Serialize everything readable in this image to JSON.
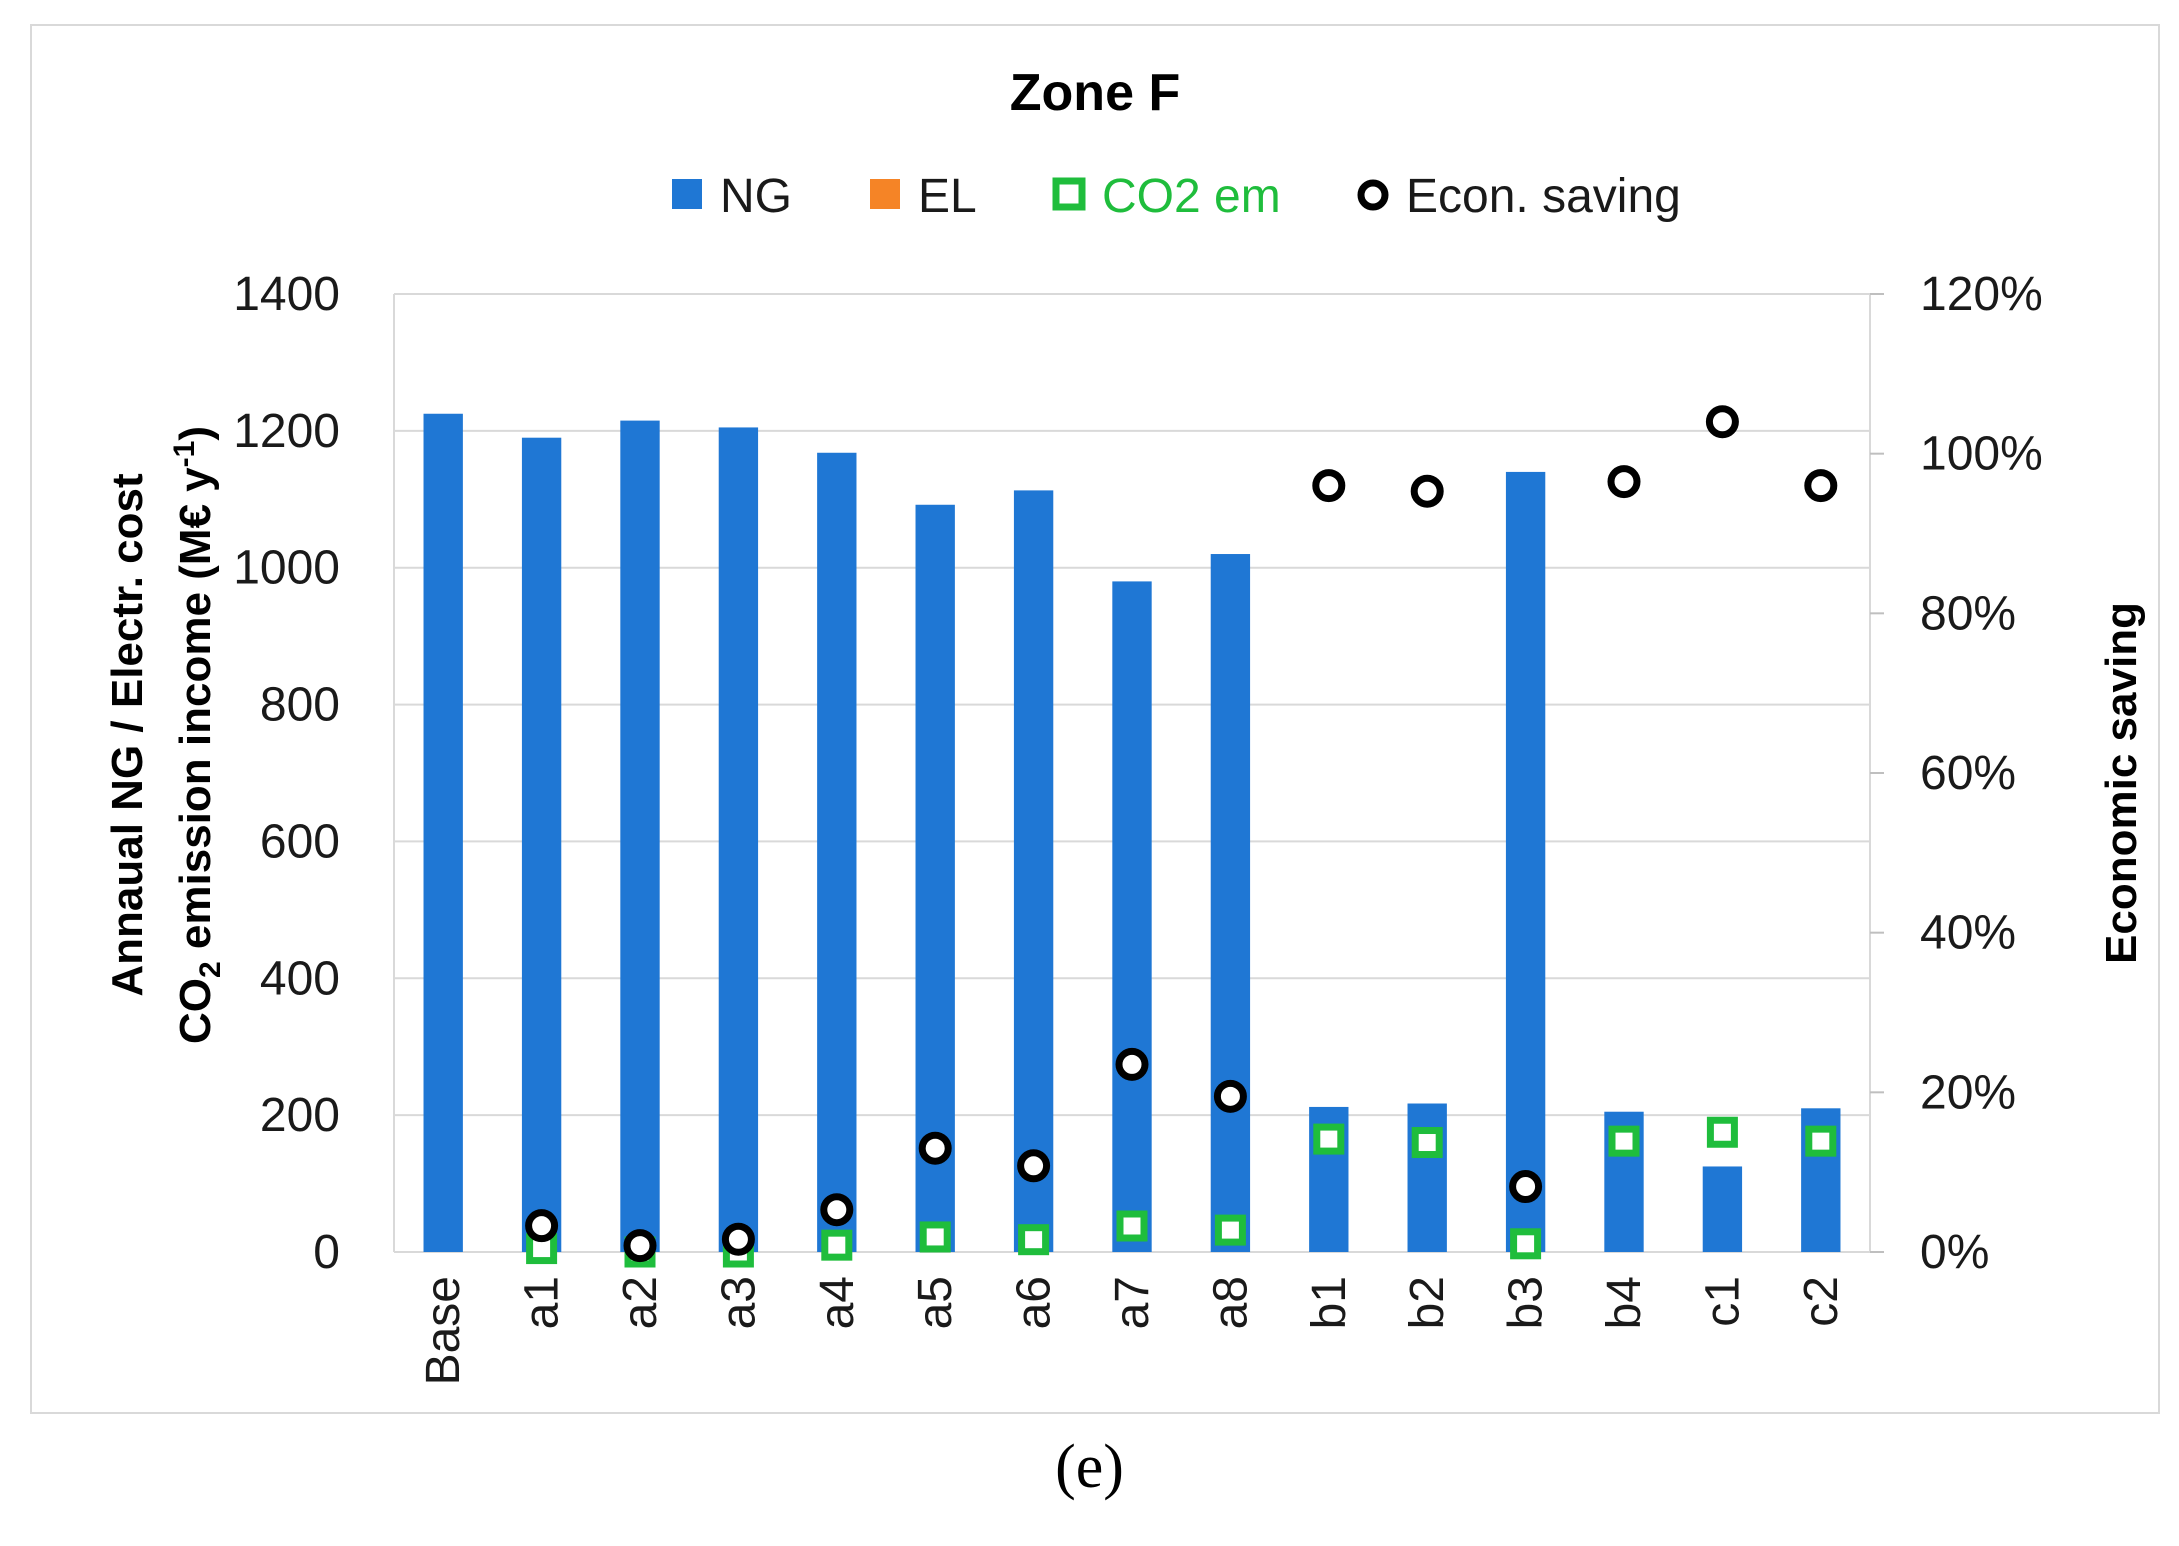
{
  "caption": "(e)",
  "chart_data": {
    "type": "bar",
    "title": "Zone F",
    "legend": [
      {
        "name": "NG",
        "color": "#1f77d4",
        "marker": "square-filled"
      },
      {
        "name": "EL",
        "color": "#f58426",
        "marker": "square-filled"
      },
      {
        "name": "CO2 em",
        "color": "#1fbd3c",
        "marker": "square-hollow"
      },
      {
        "name": "Econ. saving",
        "color": "#000000",
        "marker": "circle-hollow"
      }
    ],
    "legend_position": "top",
    "categories": [
      "Base",
      "a1",
      "a2",
      "a3",
      "a4",
      "a5",
      "a6",
      "a7",
      "a8",
      "b1",
      "b2",
      "b3",
      "b4",
      "c1",
      "c2"
    ],
    "series": [
      {
        "name": "NG",
        "axis": "left",
        "kind": "bar",
        "values": [
          1225,
          1190,
          1215,
          1205,
          1168,
          1092,
          1113,
          980,
          1020,
          212,
          217,
          1140,
          205,
          125,
          210
        ]
      },
      {
        "name": "EL",
        "axis": "left",
        "kind": "bar",
        "values": [
          0,
          0,
          0,
          0,
          0,
          0,
          0,
          0,
          0,
          0,
          0,
          0,
          0,
          0,
          0
        ]
      },
      {
        "name": "CO2 em",
        "axis": "left",
        "kind": "marker",
        "values": [
          null,
          5,
          0,
          0,
          10,
          22,
          18,
          38,
          32,
          165,
          160,
          12,
          162,
          175,
          162
        ]
      },
      {
        "name": "Econ. saving",
        "axis": "right",
        "kind": "marker",
        "values": [
          null,
          3.3,
          0.8,
          1.6,
          5.3,
          13.0,
          10.8,
          23.5,
          19.5,
          96.0,
          95.3,
          8.2,
          96.5,
          104.0,
          96.0
        ]
      }
    ],
    "ylabel_left_line1": "Annaual NG / Electr. cost",
    "ylabel_left_line2_prefix": "CO",
    "ylabel_left_line2_sub": "2",
    "ylabel_left_line2_rest": " emission income  (M€ y",
    "ylabel_left_line2_sup": "-1",
    "ylabel_left_line2_close": ")",
    "ylabel_right": "Economic saving",
    "ylim_left": [
      0,
      1400
    ],
    "ylim_right": [
      0,
      120
    ],
    "left_ticks": [
      "0",
      "200",
      "400",
      "600",
      "800",
      "1000",
      "1200",
      "1400"
    ],
    "right_ticks": [
      "0%",
      "20%",
      "40%",
      "60%",
      "80%",
      "100%",
      "120%"
    ],
    "grid": true
  }
}
